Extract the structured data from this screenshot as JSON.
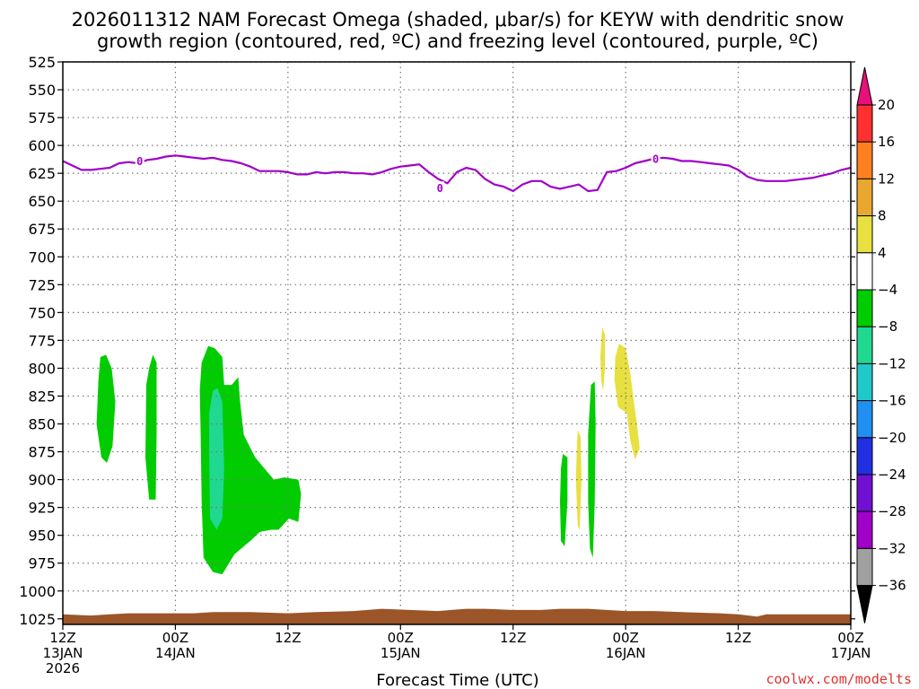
{
  "title": {
    "line1": "2026011312 NAM Forecast Omega (shaded, μbar/s) for KEYW with dendritic snow",
    "line2": "growth region (contoured, red, ºC) and freezing level (contoured, purple, ºC)"
  },
  "credit": "coolwx.com/modelts",
  "credit_color": "#e03030",
  "chart_data": {
    "type": "time-height cross section",
    "xlabel": "Forecast Time (UTC)",
    "ylabel": "",
    "x_unit": "hours since 2026-01-13 12Z",
    "xlim": [
      0,
      84
    ],
    "ylim": [
      1030,
      525
    ],
    "y_ticks": [
      525,
      550,
      575,
      600,
      625,
      650,
      675,
      700,
      725,
      750,
      775,
      800,
      825,
      850,
      875,
      900,
      925,
      950,
      975,
      1000,
      1025
    ],
    "x_ticks": [
      {
        "hour": 0,
        "lines": [
          "12Z",
          "13JAN",
          "2026"
        ]
      },
      {
        "hour": 12,
        "lines": [
          "00Z",
          "14JAN"
        ]
      },
      {
        "hour": 24,
        "lines": [
          "12Z"
        ]
      },
      {
        "hour": 36,
        "lines": [
          "00Z",
          "15JAN"
        ]
      },
      {
        "hour": 48,
        "lines": [
          "12Z"
        ]
      },
      {
        "hour": 60,
        "lines": [
          "00Z",
          "16JAN"
        ]
      },
      {
        "hour": 72,
        "lines": [
          "12Z"
        ]
      },
      {
        "hour": 84,
        "lines": [
          "00Z",
          "17JAN"
        ]
      }
    ],
    "grid": true,
    "colorbar": {
      "labels": [
        "20",
        "16",
        "12",
        "8",
        "4",
        "−4",
        "−8",
        "−12",
        "−16",
        "−20",
        "−24",
        "−28",
        "−32",
        "−36"
      ],
      "colors": [
        "#ff3030",
        "#ff8020",
        "#e8a830",
        "#e8e040",
        "#ffffff",
        "#00cc00",
        "#20d890",
        "#20c8c8",
        "#2090f0",
        "#2030e0",
        "#7010d0",
        "#a000c8",
        "#a0a0a0"
      ],
      "top_arrow_color": "#e8107a",
      "bottom_arrow_color": "#000000"
    },
    "freezing_level": {
      "color": "#a000c8",
      "label": "0",
      "label_positions": [
        {
          "hour": 8.2,
          "p": 614
        },
        {
          "hour": 40.2,
          "p": 638
        },
        {
          "hour": 63.2,
          "p": 612
        }
      ],
      "points": [
        [
          0,
          614
        ],
        [
          1,
          618
        ],
        [
          2,
          622
        ],
        [
          3,
          622
        ],
        [
          4,
          621
        ],
        [
          5,
          620
        ],
        [
          6,
          616
        ],
        [
          7,
          615
        ],
        [
          8,
          616
        ],
        [
          9,
          613
        ],
        [
          10,
          612
        ],
        [
          11,
          610
        ],
        [
          12,
          609
        ],
        [
          13,
          610
        ],
        [
          14,
          611
        ],
        [
          15,
          612
        ],
        [
          16,
          611
        ],
        [
          17,
          613
        ],
        [
          18,
          614
        ],
        [
          19,
          616
        ],
        [
          20,
          619
        ],
        [
          21,
          623
        ],
        [
          22,
          623
        ],
        [
          23,
          623
        ],
        [
          24,
          624
        ],
        [
          25,
          626
        ],
        [
          26,
          626
        ],
        [
          27,
          624
        ],
        [
          28,
          625
        ],
        [
          29,
          624
        ],
        [
          30,
          624
        ],
        [
          31,
          625
        ],
        [
          32,
          625
        ],
        [
          33,
          626
        ],
        [
          34,
          624
        ],
        [
          35,
          621
        ],
        [
          36,
          619
        ],
        [
          37,
          618
        ],
        [
          38,
          617
        ],
        [
          39,
          624
        ],
        [
          40,
          630
        ],
        [
          41,
          634
        ],
        [
          42,
          624
        ],
        [
          43,
          620
        ],
        [
          44,
          622
        ],
        [
          45,
          630
        ],
        [
          46,
          635
        ],
        [
          47,
          637
        ],
        [
          48,
          641
        ],
        [
          49,
          635
        ],
        [
          50,
          632
        ],
        [
          51,
          632
        ],
        [
          52,
          637
        ],
        [
          53,
          639
        ],
        [
          54,
          637
        ],
        [
          55,
          635
        ],
        [
          56,
          641
        ],
        [
          57,
          640
        ],
        [
          58,
          624
        ],
        [
          59,
          623
        ],
        [
          60,
          620
        ],
        [
          61,
          616
        ],
        [
          62,
          614
        ],
        [
          63,
          612
        ],
        [
          64,
          611
        ],
        [
          65,
          612
        ],
        [
          66,
          614
        ],
        [
          67,
          614
        ],
        [
          68,
          615
        ],
        [
          69,
          616
        ],
        [
          70,
          617
        ],
        [
          71,
          618
        ],
        [
          72,
          622
        ],
        [
          73,
          628
        ],
        [
          74,
          631
        ],
        [
          75,
          632
        ],
        [
          76,
          632
        ],
        [
          77,
          632
        ],
        [
          78,
          631
        ],
        [
          79,
          630
        ],
        [
          80,
          629
        ],
        [
          81,
          627
        ],
        [
          82,
          625
        ],
        [
          83,
          622
        ],
        [
          84,
          620
        ]
      ]
    },
    "terrain": {
      "color": "#9b5528",
      "top_points": [
        [
          0,
          1021
        ],
        [
          3,
          1022
        ],
        [
          5,
          1021
        ],
        [
          7,
          1020
        ],
        [
          10,
          1020
        ],
        [
          14,
          1020
        ],
        [
          16,
          1019
        ],
        [
          20,
          1019
        ],
        [
          24,
          1020
        ],
        [
          27,
          1019
        ],
        [
          31,
          1018
        ],
        [
          34,
          1016
        ],
        [
          37,
          1017
        ],
        [
          40,
          1018
        ],
        [
          43,
          1016
        ],
        [
          45,
          1016
        ],
        [
          48,
          1017
        ],
        [
          51,
          1017
        ],
        [
          53,
          1016
        ],
        [
          56,
          1016
        ],
        [
          58,
          1017
        ],
        [
          60,
          1018
        ],
        [
          63,
          1018
        ],
        [
          66,
          1019
        ],
        [
          70,
          1020
        ],
        [
          72,
          1021
        ],
        [
          74,
          1023
        ],
        [
          75,
          1021
        ],
        [
          78,
          1021
        ],
        [
          82,
          1021
        ],
        [
          84,
          1021
        ]
      ]
    },
    "omega_regions": [
      {
        "level": "-8 to -4",
        "color": "#00cc00",
        "points": [
          [
            4.0,
            790
          ],
          [
            4.6,
            788
          ],
          [
            5.2,
            800
          ],
          [
            5.6,
            830
          ],
          [
            5.3,
            870
          ],
          [
            4.7,
            885
          ],
          [
            4.1,
            880
          ],
          [
            3.6,
            850
          ],
          [
            3.8,
            810
          ]
        ]
      },
      {
        "level": "-8 to -4",
        "color": "#00cc00",
        "points": [
          [
            9.6,
            788
          ],
          [
            10.0,
            795
          ],
          [
            10.0,
            860
          ],
          [
            9.9,
            918
          ],
          [
            9.2,
            918
          ],
          [
            8.8,
            880
          ],
          [
            8.9,
            815
          ],
          [
            9.2,
            800
          ]
        ]
      },
      {
        "level": "-8 to -4",
        "color": "#00cc00",
        "points": [
          [
            15.5,
            780
          ],
          [
            16.2,
            782
          ],
          [
            17.0,
            790
          ],
          [
            17.2,
            815
          ],
          [
            18.0,
            815
          ],
          [
            18.7,
            808
          ],
          [
            18.9,
            830
          ],
          [
            19.3,
            860
          ],
          [
            20.5,
            880
          ],
          [
            21.5,
            890
          ],
          [
            22.5,
            900
          ],
          [
            23.6,
            898
          ],
          [
            25.1,
            900
          ],
          [
            25.4,
            913
          ],
          [
            25.1,
            938
          ],
          [
            24.1,
            935
          ],
          [
            23.0,
            945
          ],
          [
            22.2,
            945
          ],
          [
            21.0,
            947
          ],
          [
            20.0,
            955
          ],
          [
            18.3,
            967
          ],
          [
            17.0,
            985
          ],
          [
            16.0,
            983
          ],
          [
            15.0,
            970
          ],
          [
            14.8,
            920
          ],
          [
            14.7,
            860
          ],
          [
            14.6,
            820
          ],
          [
            14.8,
            795
          ]
        ]
      },
      {
        "level": "-12 to -8",
        "color": "#20d890",
        "points": [
          [
            16.0,
            820
          ],
          [
            16.5,
            818
          ],
          [
            17.0,
            830
          ],
          [
            17.2,
            890
          ],
          [
            17.0,
            935
          ],
          [
            16.4,
            945
          ],
          [
            15.7,
            935
          ],
          [
            15.6,
            880
          ],
          [
            15.6,
            840
          ]
        ]
      },
      {
        "level": "-8 to -4",
        "color": "#00cc00",
        "points": [
          [
            53.3,
            877
          ],
          [
            53.8,
            880
          ],
          [
            53.8,
            920
          ],
          [
            53.5,
            960
          ],
          [
            53.1,
            955
          ],
          [
            53.0,
            920
          ],
          [
            53.1,
            890
          ]
        ]
      },
      {
        "level": "-8 to -4",
        "color": "#00cc00",
        "points": [
          [
            56.3,
            815
          ],
          [
            56.7,
            812
          ],
          [
            56.8,
            850
          ],
          [
            56.7,
            920
          ],
          [
            56.5,
            970
          ],
          [
            56.2,
            962
          ],
          [
            56.0,
            920
          ],
          [
            56.0,
            860
          ]
        ]
      },
      {
        "level": "4 to 8",
        "color": "#e8e040",
        "points": [
          [
            54.9,
            855
          ],
          [
            55.2,
            862
          ],
          [
            55.3,
            900
          ],
          [
            55.1,
            945
          ],
          [
            54.9,
            942
          ],
          [
            54.7,
            900
          ],
          [
            54.8,
            870
          ]
        ]
      },
      {
        "level": "4 to 8",
        "color": "#e8e040",
        "points": [
          [
            57.5,
            763
          ],
          [
            57.8,
            770
          ],
          [
            57.8,
            800
          ],
          [
            57.6,
            820
          ],
          [
            57.4,
            812
          ],
          [
            57.3,
            790
          ]
        ]
      },
      {
        "level": "4 to 8",
        "color": "#e8e040",
        "points": [
          [
            59.3,
            778
          ],
          [
            60.0,
            782
          ],
          [
            60.5,
            805
          ],
          [
            60.8,
            825
          ],
          [
            61.2,
            850
          ],
          [
            61.5,
            872
          ],
          [
            61.0,
            882
          ],
          [
            60.5,
            865
          ],
          [
            60.1,
            840
          ],
          [
            59.2,
            835
          ],
          [
            58.8,
            810
          ],
          [
            58.9,
            790
          ]
        ]
      }
    ]
  }
}
